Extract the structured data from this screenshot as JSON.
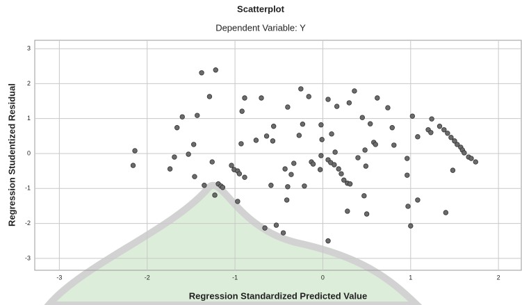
{
  "chart_data": {
    "type": "scatter",
    "title": "Scatterplot",
    "subtitle": "Dependent Variable: Y",
    "x_label": "Regression Standardized Predicted Value",
    "y_label": "Regression Studentized Residual",
    "xlim": [
      -3.28,
      2.26
    ],
    "ylim": [
      -3.34,
      3.24
    ],
    "xticks": [
      -3,
      -2,
      -1,
      0,
      1,
      2
    ],
    "yticks": [
      -3,
      -2,
      -1,
      0,
      1,
      2,
      3
    ],
    "grid": true,
    "color": "#6b6b6b",
    "x": [
      -2.14,
      -2.16,
      -1.74,
      -1.69,
      -1.6,
      -1.66,
      -1.53,
      -1.47,
      -1.46,
      -1.43,
      -1.38,
      -1.35,
      -1.29,
      -1.26,
      -1.22,
      -1.23,
      -1.19,
      -1.16,
      -1.14,
      -1.04,
      -1.01,
      -0.97,
      -0.95,
      -0.97,
      -0.89,
      -0.93,
      -0.92,
      -0.89,
      -0.76,
      -0.7,
      -0.64,
      -0.59,
      -0.56,
      -0.66,
      -0.57,
      -0.53,
      -0.45,
      -0.43,
      -0.41,
      -0.4,
      -0.4,
      -0.36,
      -0.25,
      -0.27,
      -0.23,
      -0.16,
      -0.21,
      -0.33,
      -0.13,
      -0.11,
      -0.03,
      -0.02,
      -0.02,
      -0.01,
      0.06,
      0.09,
      0.06,
      0.06,
      0.1,
      0.13,
      0.14,
      0.16,
      0.18,
      0.21,
      0.24,
      0.28,
      0.31,
      0.28,
      0.3,
      0.36,
      0.4,
      0.45,
      0.48,
      0.49,
      0.47,
      0.5,
      0.54,
      0.58,
      0.6,
      0.62,
      0.74,
      0.79,
      0.81,
      0.96,
      0.96,
      0.97,
      1.0,
      1.02,
      1.08,
      1.08,
      1.2,
      1.23,
      1.24,
      1.33,
      1.38,
      1.42,
      1.46,
      1.48,
      1.5,
      1.53,
      1.57,
      1.59,
      1.61,
      1.66,
      1.69,
      1.74,
      1.4
    ],
    "values": [
      0.08,
      -0.34,
      -0.44,
      -0.1,
      1.05,
      0.74,
      -0.02,
      0.26,
      -0.66,
      1.09,
      2.31,
      -0.91,
      1.63,
      -0.24,
      2.39,
      -1.19,
      -0.87,
      -0.93,
      -0.97,
      -0.34,
      -0.46,
      -0.5,
      -0.58,
      -1.37,
      -0.68,
      0.28,
      1.21,
      1.59,
      0.38,
      1.59,
      0.5,
      -0.91,
      0.78,
      -2.13,
      0.36,
      -2.05,
      -2.27,
      -0.44,
      -1.33,
      -0.95,
      1.33,
      -0.6,
      1.85,
      0.52,
      0.84,
      1.63,
      -0.93,
      -0.28,
      -0.24,
      -0.3,
      -0.46,
      -0.06,
      0.82,
      0.4,
      -0.18,
      -0.26,
      -2.5,
      1.55,
      0.56,
      -0.32,
      0.04,
      1.35,
      -0.44,
      -0.58,
      -0.76,
      -0.85,
      -0.87,
      -1.65,
      1.45,
      1.79,
      -0.12,
      1.03,
      0.1,
      -0.36,
      -1.21,
      -1.73,
      0.85,
      0.32,
      0.26,
      1.59,
      1.31,
      0.74,
      0.24,
      -0.14,
      -0.62,
      -1.51,
      -2.07,
      1.07,
      -1.33,
      0.48,
      0.68,
      0.6,
      0.99,
      0.78,
      0.68,
      0.58,
      0.46,
      -0.48,
      0.36,
      0.26,
      0.18,
      0.1,
      0.02,
      -0.1,
      -0.14,
      -0.24,
      -1.69
    ]
  }
}
